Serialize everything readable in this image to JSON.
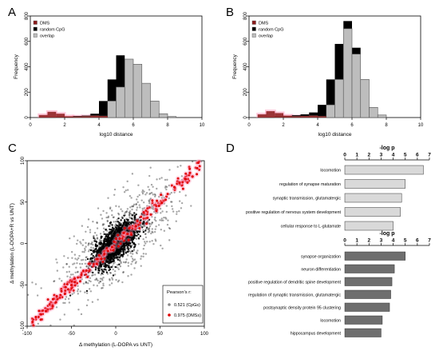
{
  "panels": {
    "A": {
      "letter": "A"
    },
    "B": {
      "letter": "B"
    },
    "C": {
      "letter": "C"
    },
    "D": {
      "letter": "D"
    }
  },
  "colors": {
    "dms": "#8b1a1a",
    "random": "#000000",
    "overlap": "#bdbdbd",
    "dms_point": "#e00000",
    "cpg_point": "#000000",
    "glow": "#ff9ec0",
    "bar_light": "#d9d9d9",
    "bar_dark": "#6e6e6e"
  },
  "chart_data": [
    {
      "type": "bar",
      "panel": "A",
      "xlabel": "log10 distance",
      "ylabel": "Frequency",
      "xlim": [
        0,
        10
      ],
      "ylim": [
        0,
        800
      ],
      "xticks": [
        0,
        2,
        4,
        6,
        8,
        10
      ],
      "yticks": [
        0,
        200,
        400,
        600,
        800
      ],
      "legend": [
        "DMS",
        "random CpG",
        "overlap"
      ],
      "legend_position": "top-left",
      "bin_width": 0.5,
      "bin_starts": [
        0,
        0.5,
        1,
        1.5,
        2,
        2.5,
        3,
        3.5,
        4,
        4.5,
        5,
        5.5,
        6,
        6.5,
        7,
        7.5,
        8,
        8.5,
        9,
        9.5
      ],
      "series": [
        {
          "name": "DMS",
          "values": [
            0,
            20,
            45,
            30,
            10,
            8,
            10,
            15,
            12,
            0,
            0,
            0,
            0,
            0,
            0,
            0,
            0,
            0,
            0,
            0
          ]
        },
        {
          "name": "random CpG",
          "values": [
            0,
            0,
            0,
            5,
            5,
            12,
            15,
            30,
            130,
            300,
            490,
            460,
            300,
            130,
            30,
            8,
            0,
            0,
            0,
            0
          ]
        },
        {
          "name": "overlap",
          "values": [
            0,
            0,
            0,
            5,
            5,
            8,
            10,
            15,
            12,
            130,
            240,
            460,
            420,
            270,
            130,
            30,
            8,
            0,
            0,
            0
          ]
        }
      ]
    },
    {
      "type": "bar",
      "panel": "B",
      "xlabel": "log10 distance",
      "ylabel": "Frequency",
      "xlim": [
        0,
        10
      ],
      "ylim": [
        0,
        800
      ],
      "xticks": [
        0,
        2,
        4,
        6,
        8,
        10
      ],
      "yticks": [
        0,
        200,
        400,
        600,
        800
      ],
      "legend": [
        "DMS",
        "random CpG",
        "overlap"
      ],
      "legend_position": "top-left",
      "bin_width": 0.5,
      "bin_starts": [
        0,
        0.5,
        1,
        1.5,
        2,
        2.5,
        3,
        3.5,
        4,
        4.5,
        5,
        5.5,
        6,
        6.5,
        7,
        7.5,
        8,
        8.5,
        9,
        9.5
      ],
      "series": [
        {
          "name": "DMS",
          "values": [
            0,
            25,
            50,
            35,
            15,
            10,
            12,
            15,
            10,
            0,
            0,
            0,
            0,
            0,
            0,
            0,
            0,
            0,
            0,
            0
          ]
        },
        {
          "name": "random CpG",
          "values": [
            0,
            0,
            0,
            8,
            8,
            18,
            25,
            40,
            100,
            300,
            580,
            760,
            550,
            300,
            80,
            20,
            0,
            0,
            0,
            0
          ]
        },
        {
          "name": "overlap",
          "values": [
            0,
            0,
            0,
            8,
            8,
            10,
            12,
            15,
            10,
            100,
            300,
            700,
            500,
            300,
            80,
            20,
            0,
            0,
            0,
            0
          ]
        }
      ]
    },
    {
      "type": "scatter",
      "panel": "C",
      "xlabel": "Δ methylation (L-DOPA vs UNT)",
      "ylabel": "Δ methylation (L-DOPA+R vs UNT)",
      "xlim": [
        -100,
        100
      ],
      "ylim": [
        -100,
        100
      ],
      "xticks": [
        -100,
        -50,
        0,
        50,
        100
      ],
      "yticks": [
        -100,
        -50,
        0,
        50,
        100
      ],
      "legend_title": "Pearson's r:",
      "legend_position": "bottom-right",
      "series": [
        {
          "name": "0.521 (CpGs)",
          "r": 0.521
        },
        {
          "name": "0.975 (DMSs)",
          "r": 0.975
        }
      ]
    },
    {
      "type": "bar",
      "orientation": "horizontal",
      "panel": "D",
      "axis_title": "-log p",
      "xlim": [
        0,
        7
      ],
      "xticks": [
        0,
        1,
        2,
        3,
        4,
        5,
        6,
        7
      ],
      "categories": [
        "locomotion",
        "regulation of synapse maturation",
        "synaptic transmission, glutamatergic",
        "positive regulation of nervous system development",
        "cellular response to L-glutamate"
      ],
      "values": [
        6.5,
        5.0,
        4.7,
        4.6,
        4.0
      ]
    },
    {
      "type": "bar",
      "orientation": "horizontal",
      "panel": "D",
      "axis_title": "-log p",
      "xlim": [
        0,
        7
      ],
      "xticks": [
        0,
        1,
        2,
        3,
        4,
        5,
        6,
        7
      ],
      "categories": [
        "synapse organization",
        "neuron differentiation",
        "positive regulation of dendritic spine development",
        "regulation of synaptic transmission, glutamatergic",
        "postsynaptic density protein 95 clustering",
        "locomotion",
        "hippocampus development"
      ],
      "values": [
        5.0,
        4.1,
        3.9,
        3.8,
        3.7,
        3.1,
        3.0
      ]
    }
  ]
}
